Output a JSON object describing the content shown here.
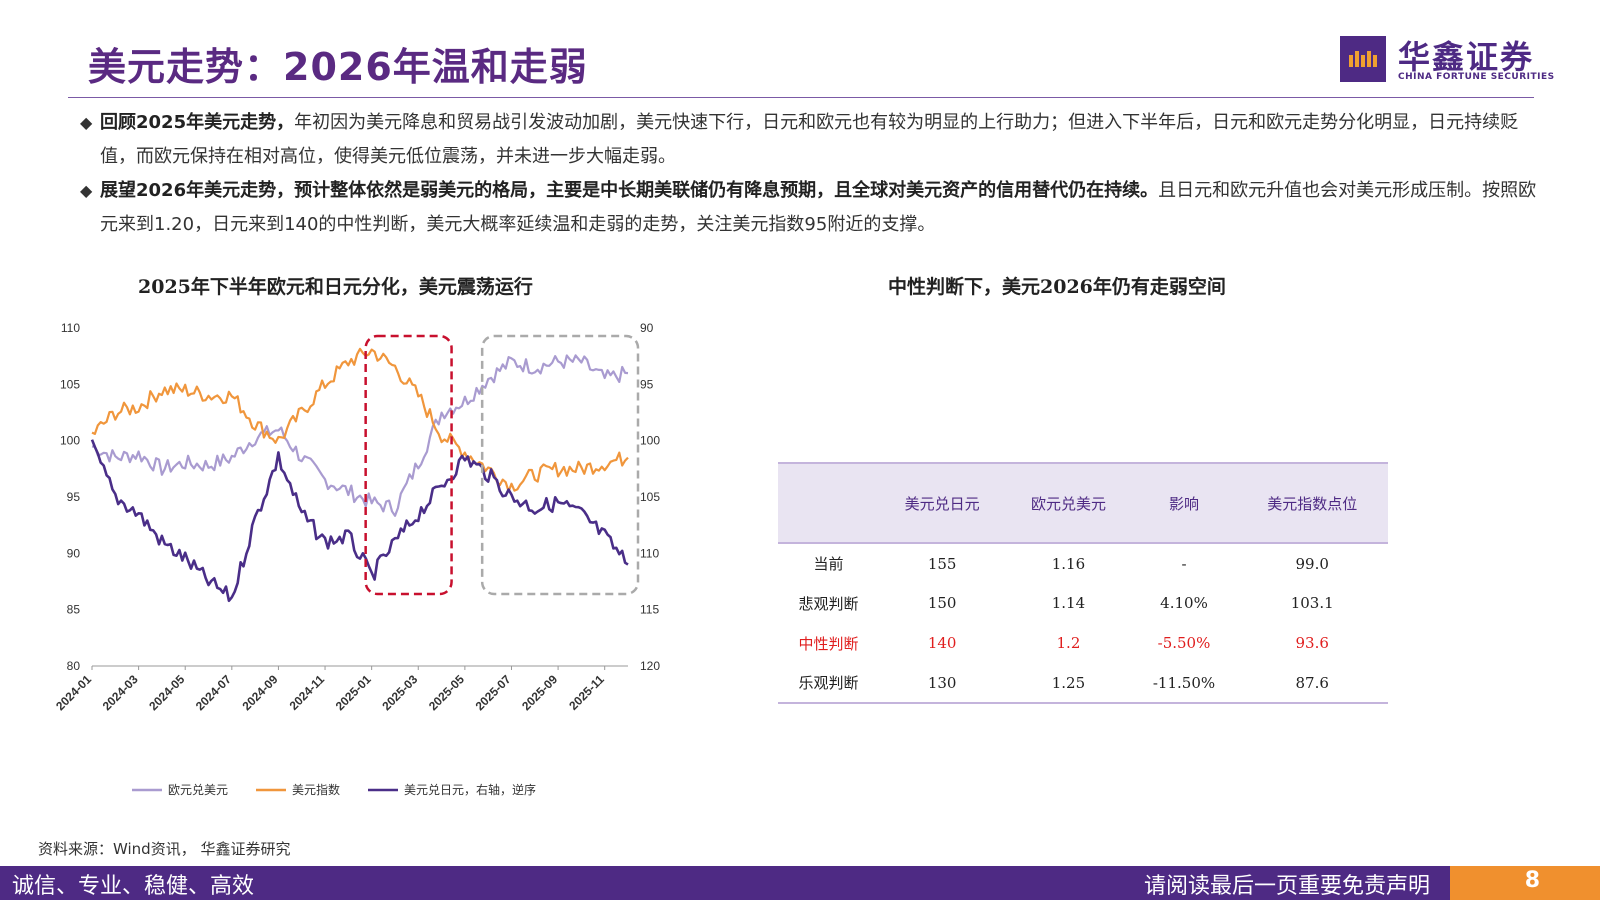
{
  "header": {
    "title": "美元走势：2026年温和走弱",
    "logo_cn": "华鑫证券",
    "logo_en": "CHINA FORTUNE SECURITIES"
  },
  "bullets": [
    {
      "bold": "回顾2025年美元走势，",
      "text": "年初因为美元降息和贸易战引发波动加剧，美元快速下行，日元和欧元也有较为明显的上行助力；但进入下半年后，日元和欧元走势分化明显，日元持续贬值，而欧元保持在相对高位，使得美元低位震荡，并未进一步大幅走弱。"
    },
    {
      "bold": "展望2026年美元走势，预计整体依然是弱美元的格局，主要是中长期美联储仍有降息预期，且全球对美元资产的信用替代仍在持续。",
      "text": "且日元和欧元升值也会对美元形成压制。按照欧元来到1.20，日元来到140的中性判断，美元大概率延续温和走弱的走势，关注美元指数95附近的支撑。"
    }
  ],
  "chart_title": "2025年下半年欧元和日元分化，美元震荡运行",
  "table_title": "中性判断下，美元2026年仍有走弱空间",
  "chart_data": {
    "type": "line",
    "title": "2025年下半年欧元和日元分化，美元震荡运行",
    "x": [
      "2024-01",
      "2024-02",
      "2024-03",
      "2024-04",
      "2024-05",
      "2024-06",
      "2024-07",
      "2024-08",
      "2024-09",
      "2024-10",
      "2024-11",
      "2024-12",
      "2025-01",
      "2025-02",
      "2025-03",
      "2025-04",
      "2025-05",
      "2025-06",
      "2025-07",
      "2025-08",
      "2025-09",
      "2025-10",
      "2025-11",
      "2025-12"
    ],
    "x_tick_labels": [
      "2024-01",
      "2024-03",
      "2024-05",
      "2024-07",
      "2024-09",
      "2024-11",
      "2025-01",
      "2025-03",
      "2025-05",
      "2025-07",
      "2025-09",
      "2025-11"
    ],
    "left_axis": {
      "min": 80,
      "max": 110,
      "ticks": [
        "110",
        "105",
        "100",
        "95",
        "90",
        "85",
        "80"
      ]
    },
    "right_axis": {
      "min": 90,
      "max": 120,
      "reversed": true,
      "ticks": [
        "90",
        "95",
        "100",
        "105",
        "110",
        "115",
        "120"
      ]
    },
    "series": [
      {
        "name": "欧元兑美元",
        "axis": "left",
        "color": "#a99bd0",
        "values": [
          99.5,
          98.5,
          98.8,
          97.5,
          98.0,
          97.8,
          98.5,
          100.3,
          101.0,
          98.5,
          96.5,
          95.5,
          94.5,
          94.0,
          98.0,
          102.5,
          103.5,
          105.5,
          107.0,
          106.5,
          107.0,
          107.0,
          105.5,
          106.0
        ]
      },
      {
        "name": "美元指数",
        "axis": "left",
        "color": "#f0963c",
        "values": [
          100.5,
          102.5,
          103.0,
          104.5,
          104.5,
          104.0,
          104.0,
          101.5,
          100.0,
          102.5,
          105.0,
          107.0,
          108.0,
          106.5,
          104.0,
          100.5,
          99.0,
          97.5,
          96.0,
          97.0,
          97.5,
          97.5,
          98.0,
          98.5
        ]
      },
      {
        "name": "美元兑日元，右轴，逆序",
        "axis": "right",
        "color": "#4a2e88",
        "values": [
          100.5,
          105.0,
          106.5,
          109.0,
          110.5,
          112.5,
          114.0,
          107.0,
          101.5,
          106.5,
          109.0,
          108.5,
          112.0,
          109.0,
          106.5,
          104.0,
          101.5,
          103.0,
          105.0,
          106.0,
          105.5,
          106.5,
          108.5,
          111.0
        ]
      }
    ],
    "annotations": [
      {
        "type": "box",
        "style": "dashed",
        "color": "#c8102e",
        "from": "2025-01",
        "to": "2025-04"
      },
      {
        "type": "box",
        "style": "dashed",
        "color": "#aaaaaa",
        "from": "2025-06",
        "to": "2025-12"
      }
    ],
    "legend_position": "bottom",
    "grid": false
  },
  "table": {
    "columns": [
      "",
      "美元兑日元",
      "欧元兑美元",
      "影响",
      "美元指数点位"
    ],
    "rows": [
      {
        "label": "当前",
        "jpy": "155",
        "eur": "1.16",
        "impact": "-",
        "dxy": "99.0",
        "highlight": false
      },
      {
        "label": "悲观判断",
        "jpy": "150",
        "eur": "1.14",
        "impact": "4.10%",
        "dxy": "103.1",
        "highlight": false
      },
      {
        "label": "中性判断",
        "jpy": "140",
        "eur": "1.2",
        "impact": "-5.50%",
        "dxy": "93.6",
        "highlight": true
      },
      {
        "label": "乐观判断",
        "jpy": "130",
        "eur": "1.25",
        "impact": "-11.50%",
        "dxy": "87.6",
        "highlight": false
      }
    ],
    "highlight_color": "#e01e1e"
  },
  "source": "资料来源：Wind资讯， 华鑫证券研究",
  "footer": {
    "left": "诚信、专业、稳健、高效",
    "right": "请阅读最后一页重要免责声明",
    "page": "8"
  },
  "colors": {
    "brand": "#4e2a84",
    "accent": "#f0902e",
    "title": "#5a2a82"
  },
  "icons": [
    "bullet-diamond-icon",
    "logo-mark-icon"
  ]
}
